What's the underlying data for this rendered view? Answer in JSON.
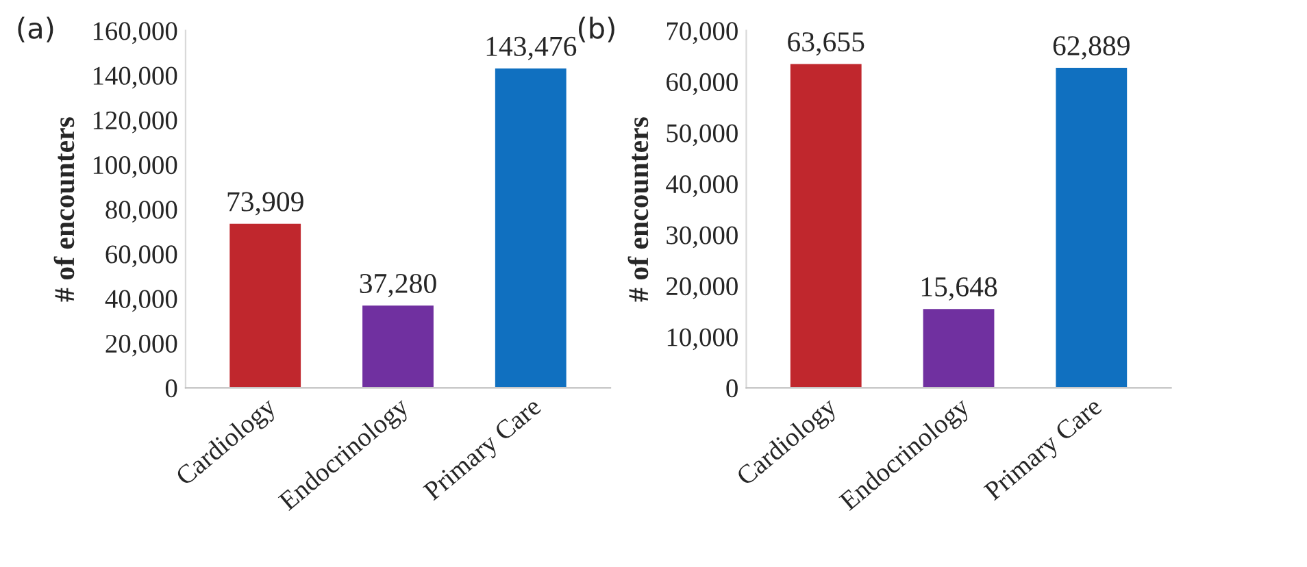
{
  "chart_data": [
    {
      "type": "bar",
      "ylabel": "# of encounters",
      "annotations": [
        "(a)"
      ],
      "categories": [
        "Cardiology",
        "Endocrinology",
        "Primary Care"
      ],
      "values": [
        73909,
        37280,
        143476
      ],
      "colors": [
        "#c0272d",
        "#7030a0",
        "#1070c0"
      ],
      "value_labels": [
        "73,909",
        "37,280",
        "143,476"
      ],
      "ylim": [
        0,
        160000
      ],
      "yticks": [
        {
          "value": 0,
          "label": "0"
        },
        {
          "value": 20000,
          "label": "20,000"
        },
        {
          "value": 40000,
          "label": "40,000"
        },
        {
          "value": 60000,
          "label": "60,000"
        },
        {
          "value": 80000,
          "label": "80,000"
        },
        {
          "value": 100000,
          "label": "100,000"
        },
        {
          "value": 120000,
          "label": "120,000"
        },
        {
          "value": 140000,
          "label": "140,000"
        },
        {
          "value": 160000,
          "label": "160,000"
        }
      ],
      "grid": false,
      "legend": false
    },
    {
      "type": "bar",
      "ylabel": "# of encounters",
      "annotations": [
        "(b)"
      ],
      "categories": [
        "Cardiology",
        "Endocrinology",
        "Primary Care"
      ],
      "values": [
        63655,
        15648,
        62889
      ],
      "colors": [
        "#c0272d",
        "#7030a0",
        "#1070c0"
      ],
      "value_labels": [
        "63,655",
        "15,648",
        "62,889"
      ],
      "ylim": [
        0,
        70000
      ],
      "yticks": [
        {
          "value": 0,
          "label": "0"
        },
        {
          "value": 10000,
          "label": "10,000"
        },
        {
          "value": 20000,
          "label": "20,000"
        },
        {
          "value": 30000,
          "label": "30,000"
        },
        {
          "value": 40000,
          "label": "40,000"
        },
        {
          "value": 50000,
          "label": "50,000"
        },
        {
          "value": 60000,
          "label": "60,000"
        },
        {
          "value": 70000,
          "label": "70,000"
        }
      ],
      "grid": false,
      "legend": false
    }
  ]
}
